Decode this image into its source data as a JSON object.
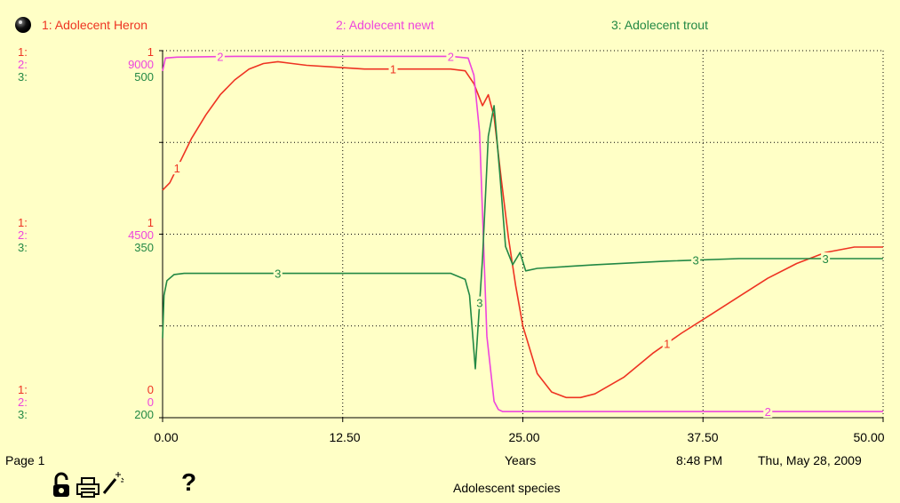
{
  "colors": {
    "background": "#FFFFC6",
    "series1": "#EE3322",
    "series2": "#EE44DD",
    "series3": "#228844",
    "grid": "#000000"
  },
  "legend": [
    {
      "label": "1: Adolecent Heron",
      "color": "#EE3322"
    },
    {
      "label": "2: Adolecent newt",
      "color": "#EE44DD"
    },
    {
      "label": "3: Adolecent trout",
      "color": "#228844"
    }
  ],
  "axis_labels": {
    "top": {
      "i1": "1:",
      "i2": "2:",
      "i3": "3:",
      "v1": "1",
      "v2": "9000",
      "v3": "500"
    },
    "middle": {
      "i1": "1:",
      "i2": "2:",
      "i3": "3:",
      "v1": "1",
      "v2": "4500",
      "v3": "350"
    },
    "bottom": {
      "i1": "1:",
      "i2": "2:",
      "i3": "3:",
      "v1": "0",
      "v2": "0",
      "v3": "200"
    }
  },
  "x_ticks": [
    "0.00",
    "12.50",
    "25.00",
    "37.50",
    "50.00"
  ],
  "footer": {
    "page": "Page 1",
    "xlabel": "Years",
    "time": "8:48 PM",
    "date": "Thu, May 28, 2009",
    "title": "Adolescent species",
    "help": "?"
  },
  "icons": [
    "sphere-icon",
    "unlock-icon",
    "print-icon",
    "magic-wand-icon",
    "help-icon"
  ],
  "chart_data": {
    "type": "line",
    "title": "Adolescent species",
    "xlabel": "Years",
    "xlim": [
      0,
      50
    ],
    "grid": true,
    "legend_position": "top",
    "series": [
      {
        "name": "1: Adolecent Heron",
        "color": "#EE3322",
        "ylim": [
          0,
          2
        ],
        "x": [
          0,
          0.5,
          1,
          2,
          3,
          4,
          5,
          6,
          7,
          8,
          9,
          10,
          12,
          14,
          16,
          18,
          20,
          21,
          21.6,
          22.2,
          22.6,
          23,
          23.5,
          24,
          24.5,
          25,
          26,
          27,
          28,
          29,
          30,
          32,
          34,
          36,
          38,
          40,
          42,
          44,
          46,
          48,
          50
        ],
        "y": [
          1.24,
          1.28,
          1.36,
          1.52,
          1.65,
          1.76,
          1.84,
          1.9,
          1.93,
          1.94,
          1.93,
          1.92,
          1.91,
          1.9,
          1.9,
          1.9,
          1.9,
          1.89,
          1.82,
          1.7,
          1.76,
          1.64,
          1.3,
          0.98,
          0.72,
          0.5,
          0.24,
          0.14,
          0.11,
          0.11,
          0.13,
          0.22,
          0.35,
          0.46,
          0.56,
          0.66,
          0.76,
          0.84,
          0.9,
          0.93,
          0.93
        ]
      },
      {
        "name": "2: Adolecent newt",
        "color": "#EE44DD",
        "ylim": [
          0,
          9000
        ],
        "x": [
          0,
          0.2,
          1,
          5,
          10,
          15,
          20,
          21.2,
          21.6,
          22,
          22.2,
          22.5,
          23,
          23.3,
          23.6,
          24,
          30,
          40,
          50
        ],
        "y": [
          8500,
          8820,
          8840,
          8860,
          8860,
          8860,
          8860,
          8820,
          8400,
          7000,
          5000,
          2000,
          400,
          200,
          150,
          150,
          150,
          150,
          150
        ]
      },
      {
        "name": "3: Adolecent trout",
        "color": "#228844",
        "ylim": [
          200,
          500
        ],
        "x": [
          0,
          0.1,
          0.3,
          0.8,
          1.5,
          3,
          6,
          10,
          15,
          18,
          20,
          21,
          21.3,
          21.7,
          22.2,
          22.6,
          23,
          23.4,
          23.8,
          24.3,
          24.8,
          25.2,
          26,
          30,
          35,
          40,
          43,
          46,
          50
        ],
        "y": [
          265,
          300,
          312,
          317,
          318,
          318,
          318,
          318,
          318,
          318,
          318,
          313,
          300,
          240,
          330,
          430,
          455,
          400,
          340,
          325,
          335,
          320,
          322,
          325,
          328,
          330,
          330,
          330,
          330
        ]
      }
    ]
  }
}
